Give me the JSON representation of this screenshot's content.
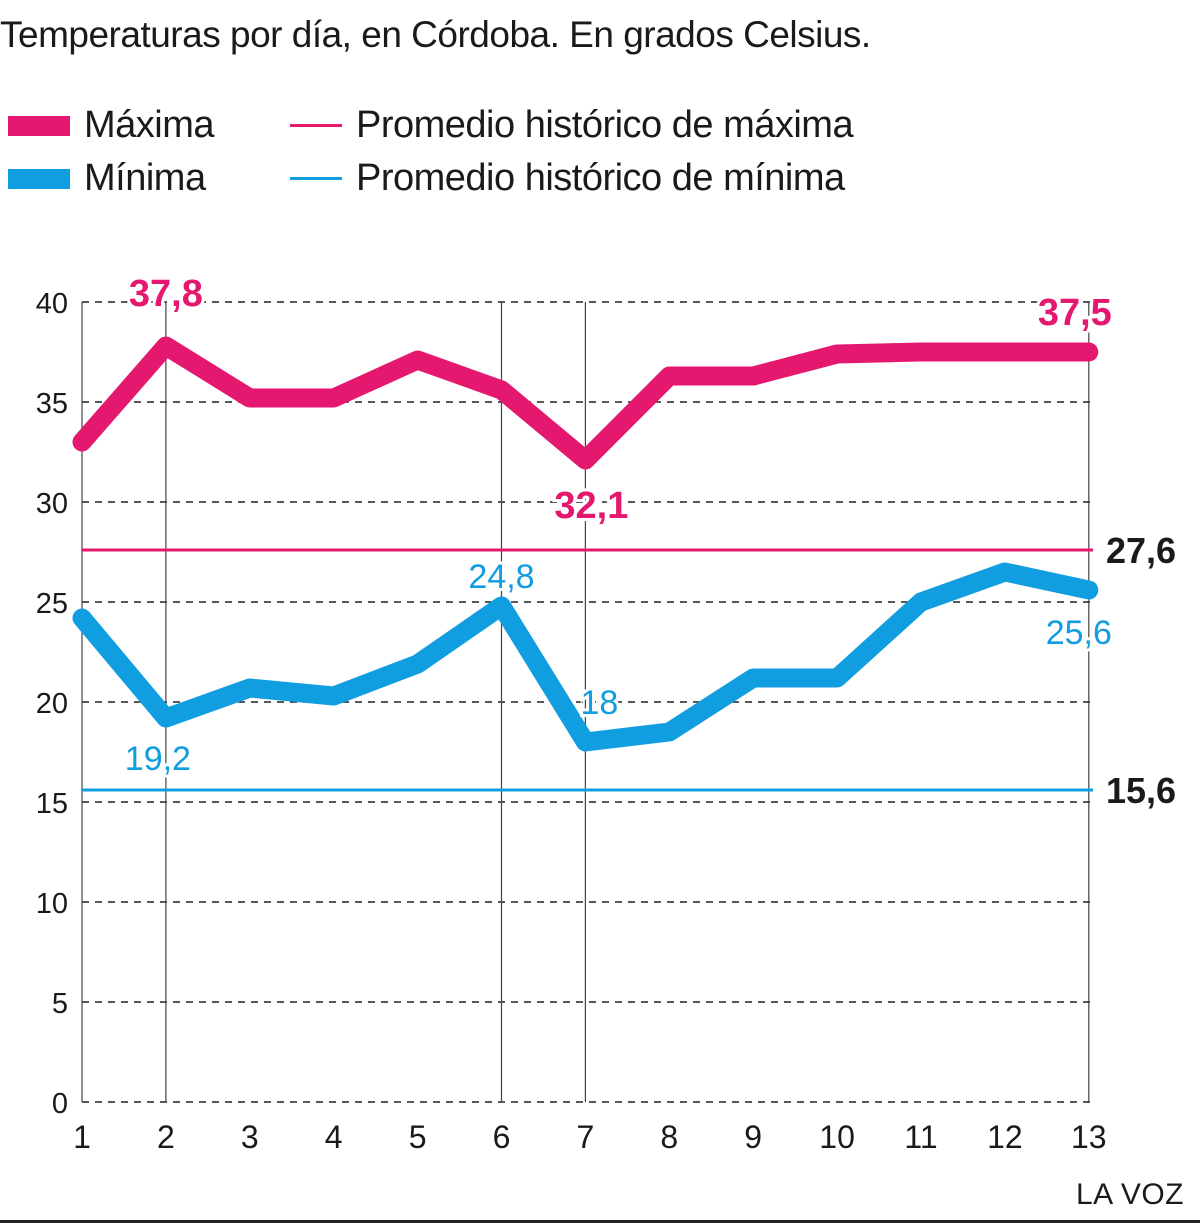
{
  "title": "Temperaturas por día, en Córdoba. En grados Celsius.",
  "legend": [
    {
      "label": "Máxima",
      "style": "thick",
      "color": "#e5186f"
    },
    {
      "label": "Mínima",
      "style": "thick",
      "color": "#119ee0"
    },
    {
      "label": "Promedio histórico de máxima",
      "style": "thin",
      "color": "#e5186f"
    },
    {
      "label": "Promedio histórico de mínima",
      "style": "thin",
      "color": "#119ee0"
    }
  ],
  "credit": "LA VOZ",
  "colors": {
    "max": "#e5186f",
    "min": "#119ee0",
    "grid": "#222222",
    "text": "#1a1a1a"
  },
  "chart_data": {
    "type": "line",
    "title": "Temperaturas por día, en Córdoba. En grados Celsius.",
    "x": [
      1,
      2,
      3,
      4,
      5,
      6,
      7,
      8,
      9,
      10,
      11,
      12,
      13
    ],
    "xlabel": "",
    "ylabel": "",
    "ylim": [
      0,
      40
    ],
    "yticks": [
      0,
      5,
      10,
      15,
      20,
      25,
      30,
      35,
      40
    ],
    "grid": true,
    "legend_position": "top-left",
    "series": [
      {
        "name": "Máxima",
        "color": "#e5186f",
        "values": [
          33.0,
          37.8,
          35.2,
          35.2,
          37.1,
          35.6,
          32.1,
          36.3,
          36.3,
          37.4,
          37.5,
          37.5,
          37.5
        ]
      },
      {
        "name": "Mínima",
        "color": "#119ee0",
        "values": [
          24.2,
          19.2,
          20.7,
          20.3,
          21.9,
          24.8,
          18.0,
          18.5,
          21.2,
          21.2,
          25.0,
          26.5,
          25.6
        ]
      }
    ],
    "reference_lines": [
      {
        "name": "Promedio histórico de máxima",
        "value": 27.6,
        "label": "27,6",
        "color": "#e5186f"
      },
      {
        "name": "Promedio histórico de mínima",
        "value": 15.6,
        "label": "15,6",
        "color": "#119ee0"
      }
    ],
    "annotations": [
      {
        "series": 0,
        "index": 1,
        "text": "37,8"
      },
      {
        "series": 0,
        "index": 6,
        "text": "32,1"
      },
      {
        "series": 0,
        "index": 12,
        "text": "37,5"
      },
      {
        "series": 1,
        "index": 1,
        "text": "19,2"
      },
      {
        "series": 1,
        "index": 5,
        "text": "24,8"
      },
      {
        "series": 1,
        "index": 6,
        "text": "18"
      },
      {
        "series": 1,
        "index": 12,
        "text": "25,6"
      }
    ],
    "highlight_x": [
      2,
      6,
      7
    ]
  }
}
